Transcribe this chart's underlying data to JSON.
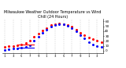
{
  "title": "Milwaukee Weather Outdoor Temperature vs Wind Chill (24 Hours)",
  "title_fontsize": 3.5,
  "background_color": "#ffffff",
  "grid_color": "#aaaaaa",
  "hours": [
    1,
    2,
    3,
    4,
    5,
    6,
    7,
    8,
    9,
    10,
    11,
    12,
    13,
    14,
    15,
    16,
    17,
    18,
    19,
    20,
    21,
    22,
    23,
    24
  ],
  "temp": [
    8,
    9,
    10,
    11,
    13,
    15,
    20,
    28,
    35,
    42,
    47,
    52,
    55,
    56,
    55,
    53,
    49,
    43,
    37,
    32,
    27,
    23,
    20,
    18
  ],
  "wind_chill": [
    2,
    3,
    4,
    5,
    6,
    7,
    11,
    20,
    28,
    36,
    43,
    49,
    53,
    55,
    54,
    51,
    47,
    40,
    32,
    25,
    18,
    13,
    10,
    7
  ],
  "temp_flat_x": [
    4,
    5,
    6,
    7,
    8
  ],
  "temp_flat_y": [
    13,
    13,
    13,
    13,
    13
  ],
  "chill_flat_x": [
    4,
    5,
    6,
    7,
    8
  ],
  "chill_flat_y": [
    6,
    6,
    6,
    6,
    6
  ],
  "temp_color": "#ff0000",
  "chill_color": "#0000ff",
  "flat_temp_color": "#ff0000",
  "flat_chill_color": "#0000ff",
  "ylim": [
    -5,
    65
  ],
  "xlim": [
    0.5,
    24.5
  ],
  "ytick_positions": [
    0,
    10,
    20,
    30,
    40,
    50,
    60
  ],
  "ytick_labels": [
    "0",
    "1",
    "2",
    "3",
    "4",
    "5",
    "6"
  ],
  "xtick_positions": [
    1,
    3,
    5,
    7,
    9,
    11,
    13,
    15,
    17,
    19,
    21,
    23
  ],
  "xtick_labels": [
    "1",
    "3",
    "5",
    "7",
    "9",
    "1",
    "3",
    "5",
    "7",
    "9",
    "1",
    "3"
  ],
  "marker_size": 1.2,
  "grid_linewidth": 0.35,
  "spine_linewidth": 0.4
}
